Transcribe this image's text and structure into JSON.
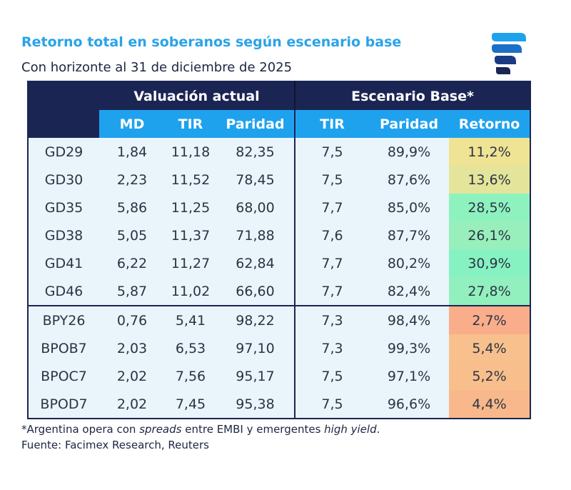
{
  "title": "Retorno total en soberanos según escenario base",
  "subtitle": "Con horizonte al 31 de diciembre de 2025",
  "logo_icon": "facimex-logo-icon",
  "colors": {
    "title": "#2aa3e8",
    "header_dark": "#1b2553",
    "header_light": "#1fa2ee",
    "row_bg": "#eaf4fb",
    "retorno_yellow": "#ede28f",
    "retorno_green": "#8ef0bd",
    "retorno_orange": "#f8bf8c"
  },
  "chart_data": {
    "type": "table",
    "group_headers": [
      "Valuación actual",
      "Escenario Base*"
    ],
    "columns": [
      "MD",
      "TIR",
      "Paridad",
      "TIR",
      "Paridad",
      "Retorno"
    ],
    "rows": [
      {
        "bond": "GD29",
        "md": "1,84",
        "tir": "11,18",
        "paridad": "82,35",
        "tir_base": "7,5",
        "paridad_base": "89,9%",
        "retorno": "11,2%",
        "retorno_color": "#efe394"
      },
      {
        "bond": "GD30",
        "md": "2,23",
        "tir": "11,52",
        "paridad": "78,45",
        "tir_base": "7,5",
        "paridad_base": "87,6%",
        "retorno": "13,6%",
        "retorno_color": "#e4e49a"
      },
      {
        "bond": "GD35",
        "md": "5,86",
        "tir": "11,25",
        "paridad": "68,00",
        "tir_base": "7,7",
        "paridad_base": "85,0%",
        "retorno": "28,5%",
        "retorno_color": "#8ef2bf"
      },
      {
        "bond": "GD38",
        "md": "5,05",
        "tir": "11,37",
        "paridad": "71,88",
        "tir_base": "7,6",
        "paridad_base": "87,7%",
        "retorno": "26,1%",
        "retorno_color": "#98efbb"
      },
      {
        "bond": "GD41",
        "md": "6,22",
        "tir": "11,27",
        "paridad": "62,84",
        "tir_base": "7,7",
        "paridad_base": "80,2%",
        "retorno": "30,9%",
        "retorno_color": "#86f2c2"
      },
      {
        "bond": "GD46",
        "md": "5,87",
        "tir": "11,02",
        "paridad": "66,60",
        "tir_base": "7,7",
        "paridad_base": "82,4%",
        "retorno": "27,8%",
        "retorno_color": "#92f0be"
      },
      {
        "bond": "BPY26",
        "md": "0,76",
        "tir": "5,41",
        "paridad": "98,22",
        "tir_base": "7,3",
        "paridad_base": "98,4%",
        "retorno": "2,7%",
        "retorno_color": "#f9ad8a"
      },
      {
        "bond": "BPOB7",
        "md": "2,03",
        "tir": "6,53",
        "paridad": "97,10",
        "tir_base": "7,3",
        "paridad_base": "99,3%",
        "retorno": "5,4%",
        "retorno_color": "#f8c08c"
      },
      {
        "bond": "BPOC7",
        "md": "2,02",
        "tir": "7,56",
        "paridad": "95,17",
        "tir_base": "7,5",
        "paridad_base": "97,1%",
        "retorno": "5,2%",
        "retorno_color": "#f8be8c"
      },
      {
        "bond": "BPOD7",
        "md": "2,02",
        "tir": "7,45",
        "paridad": "95,38",
        "tir_base": "7,5",
        "paridad_base": "96,6%",
        "retorno": "4,4%",
        "retorno_color": "#f8b88b"
      }
    ],
    "group_break_after_row": 6
  },
  "footnote": {
    "p1": "*Argentina opera con ",
    "em1": "spreads",
    "p2": " entre EMBI y emergentes ",
    "em2": "high yield",
    "p3": ".",
    "source": "Fuente: Facimex Research, Reuters"
  }
}
